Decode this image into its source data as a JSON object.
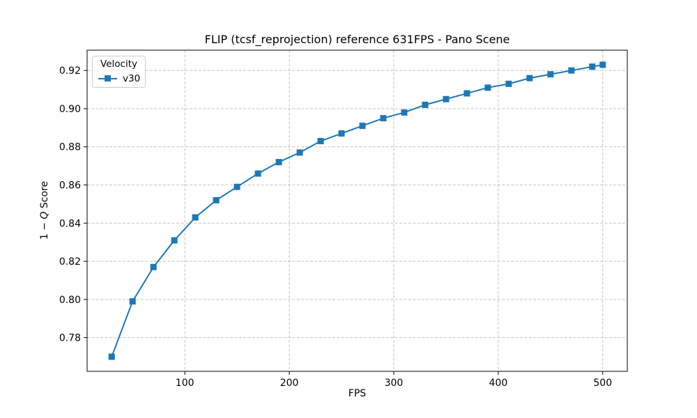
{
  "chart_data": {
    "type": "line",
    "title": "FLIP (tcsf_reprojection) reference 631FPS - Pano Scene",
    "xlabel": "FPS",
    "ylabel": "1 − Q Score",
    "ylabel_parts": {
      "prefix": "1 − ",
      "var": "Q",
      "suffix": " Score"
    },
    "legend": {
      "title": "Velocity",
      "position": "upper left"
    },
    "series": [
      {
        "name": "v30",
        "color": "#1f77b4",
        "marker": "square",
        "x": [
          30,
          50,
          70,
          90,
          110,
          130,
          150,
          170,
          190,
          210,
          230,
          250,
          270,
          290,
          310,
          330,
          350,
          370,
          390,
          410,
          430,
          450,
          470,
          490,
          500
        ],
        "y": [
          0.77,
          0.799,
          0.817,
          0.831,
          0.843,
          0.852,
          0.859,
          0.866,
          0.872,
          0.877,
          0.883,
          0.887,
          0.891,
          0.895,
          0.898,
          0.902,
          0.905,
          0.908,
          0.911,
          0.913,
          0.916,
          0.918,
          0.92,
          0.922,
          0.923
        ]
      }
    ],
    "xlim": [
      6.5,
      523.5
    ],
    "ylim": [
      0.76235,
      0.93065
    ],
    "xticks": [
      100,
      200,
      300,
      400,
      500
    ],
    "yticks": [
      0.78,
      0.8,
      0.82,
      0.84,
      0.86,
      0.88,
      0.9,
      0.92
    ],
    "grid": true,
    "grid_style": "dashed",
    "grid_color": "#c3c3c3",
    "spine_color": "#000000",
    "background_color": "#ffffff"
  }
}
